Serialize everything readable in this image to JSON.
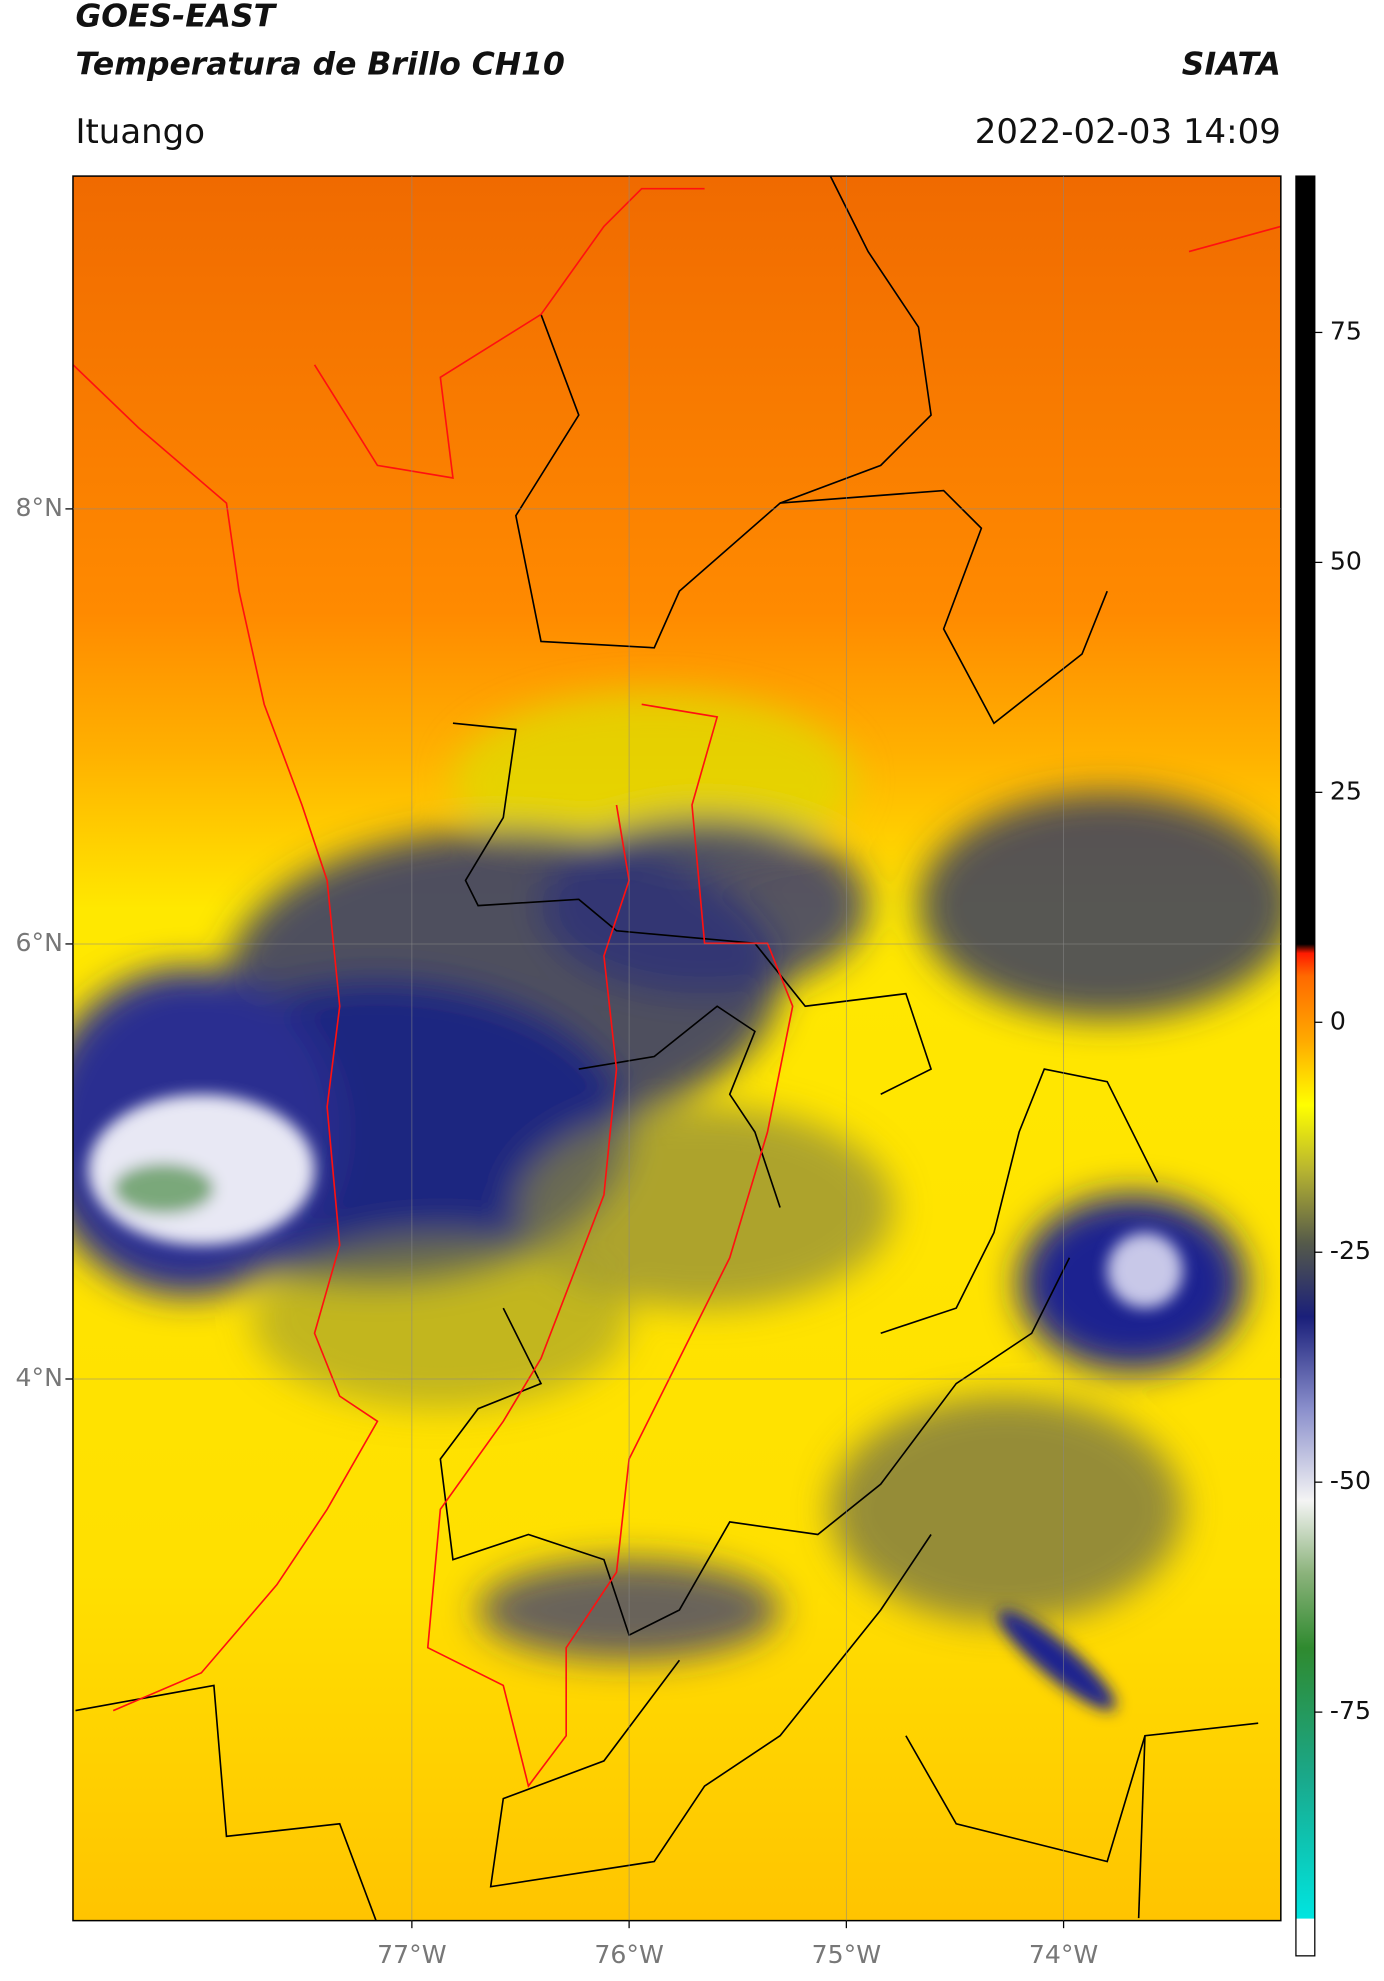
{
  "header": {
    "title": "GOES-EAST",
    "subtitle": "Temperatura de Brillo CH10",
    "source": "SIATA",
    "region": "Ituango",
    "datetime": "2022-02-03 14:09"
  },
  "map": {
    "xlim": [
      -78.56,
      -73.0
    ],
    "ylim": [
      1.51,
      9.53
    ],
    "xticks": [
      {
        "value": -77,
        "label": "77°W"
      },
      {
        "value": -76,
        "label": "76°W"
      },
      {
        "value": -75,
        "label": "75°W"
      },
      {
        "value": -74,
        "label": "74°W"
      }
    ],
    "yticks": [
      {
        "value": 8,
        "label": "8°N"
      },
      {
        "value": 6,
        "label": "6°N"
      },
      {
        "value": 4,
        "label": "4°N"
      }
    ],
    "grid": true
  },
  "colorbar": {
    "lim": [
      -101.5,
      92
    ],
    "ticks": [
      75,
      50,
      25,
      0,
      -25,
      -50,
      -75
    ],
    "colormap": [
      {
        "value": -101.5,
        "color": "#ffffff"
      },
      {
        "value": -97.5,
        "color": "#ffffff"
      },
      {
        "value": -97.4,
        "color": "#00e5e0"
      },
      {
        "value": -82,
        "color": "#1aa88a"
      },
      {
        "value": -68,
        "color": "#2f8a2f"
      },
      {
        "value": -60,
        "color": "#8ab27a"
      },
      {
        "value": -52,
        "color": "#f4f4f4"
      },
      {
        "value": -42,
        "color": "#8a8fcc"
      },
      {
        "value": -32,
        "color": "#1a1f7a"
      },
      {
        "value": -24,
        "color": "#555a4a"
      },
      {
        "value": -16,
        "color": "#b8b530"
      },
      {
        "value": -9,
        "color": "#ffff00"
      },
      {
        "value": -2,
        "color": "#ffaa00"
      },
      {
        "value": 5,
        "color": "#ff6a00"
      },
      {
        "value": 7.5,
        "color": "#ff1a00"
      },
      {
        "value": 8.5,
        "color": "#000000"
      },
      {
        "value": 92,
        "color": "#000000"
      }
    ]
  }
}
